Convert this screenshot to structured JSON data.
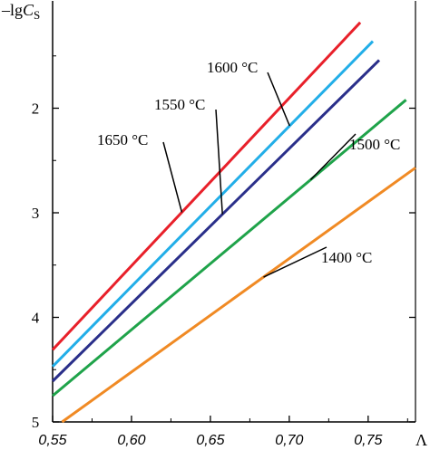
{
  "chart_data": {
    "type": "line",
    "xlabel": "Λ",
    "ylabel_prefix": "–lg",
    "ylabel_var": "C",
    "ylabel_sub": "S",
    "xlim": [
      0.55,
      0.78
    ],
    "ylim": [
      1.0,
      5.0
    ],
    "y_inverted": true,
    "xticks": [
      {
        "value": 0.55,
        "label": "0,55"
      },
      {
        "value": 0.6,
        "label": "0,60"
      },
      {
        "value": 0.65,
        "label": "0,65"
      },
      {
        "value": 0.7,
        "label": "0,70"
      },
      {
        "value": 0.75,
        "label": "0,75"
      }
    ],
    "yticks": [
      {
        "value": 2,
        "label": "2"
      },
      {
        "value": 3,
        "label": "3"
      },
      {
        "value": 4,
        "label": "4"
      },
      {
        "value": 5,
        "label": "5"
      }
    ],
    "grid": false,
    "series": [
      {
        "name": "1650 °C",
        "color": "#e8202a",
        "x": [
          0.55,
          0.745
        ],
        "y": [
          4.31,
          1.18
        ]
      },
      {
        "name": "1600 °C",
        "color": "#22aee8",
        "x": [
          0.55,
          0.753
        ],
        "y": [
          4.47,
          1.36
        ]
      },
      {
        "name": "1550 °C",
        "color": "#2a2f8a",
        "x": [
          0.55,
          0.757
        ],
        "y": [
          4.61,
          1.54
        ]
      },
      {
        "name": "1500 °C",
        "color": "#1fa34a",
        "x": [
          0.55,
          0.774
        ],
        "y": [
          4.75,
          1.92
        ]
      },
      {
        "name": "1400 °C",
        "color": "#f08a24",
        "x": [
          0.556,
          0.78
        ],
        "y": [
          5.0,
          2.57
        ]
      }
    ],
    "annotations": [
      {
        "series": 0,
        "text": "1650 °C"
      },
      {
        "series": 1,
        "text": "1600 °C"
      },
      {
        "series": 2,
        "text": "1550 °C"
      },
      {
        "series": 3,
        "text": "1500 °C"
      },
      {
        "series": 4,
        "text": "1400 °C"
      }
    ]
  }
}
